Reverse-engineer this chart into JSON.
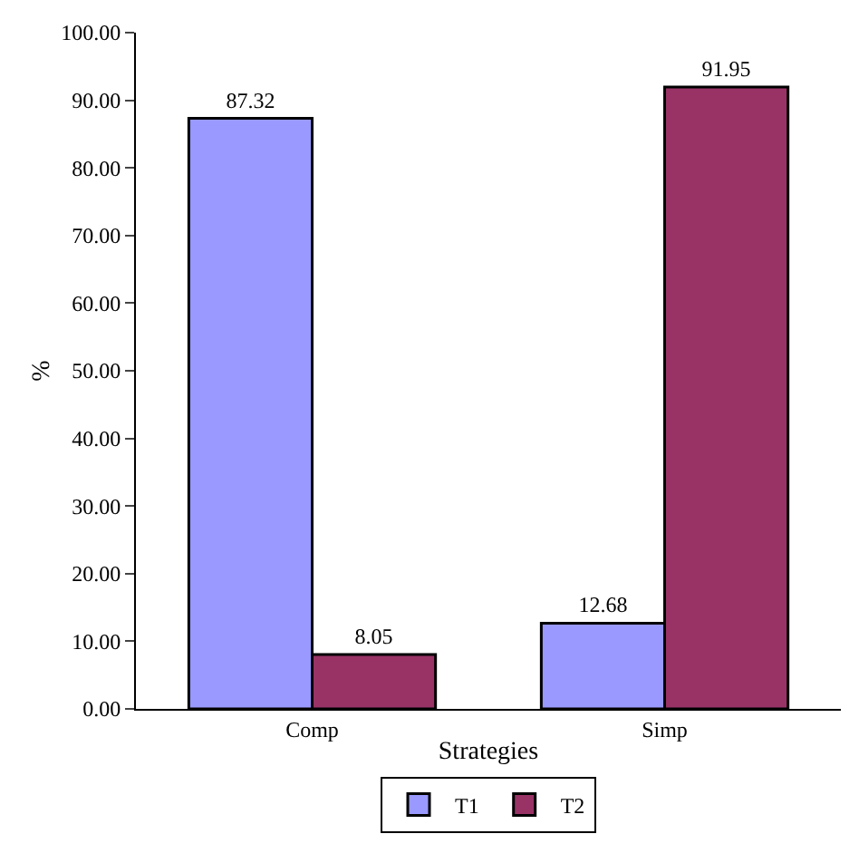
{
  "chart_data": {
    "type": "bar",
    "xlabel": "Strategies",
    "ylabel": "%",
    "categories": [
      "Comp",
      "Simp"
    ],
    "series": [
      {
        "name": "T1",
        "color": "#9999ff",
        "values": [
          87.32,
          12.68
        ]
      },
      {
        "name": "T2",
        "color": "#993366",
        "values": [
          8.05,
          91.95
        ]
      }
    ],
    "ylim": [
      0,
      100
    ],
    "yticks": [
      {
        "value": 0,
        "label": "0.00"
      },
      {
        "value": 10,
        "label": "10.00"
      },
      {
        "value": 20,
        "label": "20.00"
      },
      {
        "value": 30,
        "label": "30.00"
      },
      {
        "value": 40,
        "label": "40.00"
      },
      {
        "value": 50,
        "label": "50.00"
      },
      {
        "value": 60,
        "label": "60.00"
      },
      {
        "value": 70,
        "label": "70.00"
      },
      {
        "value": 80,
        "label": "80.00"
      },
      {
        "value": 90,
        "label": "90.00"
      },
      {
        "value": 100,
        "label": "100.00"
      }
    ],
    "data_labels": true,
    "legend": "bottom"
  }
}
